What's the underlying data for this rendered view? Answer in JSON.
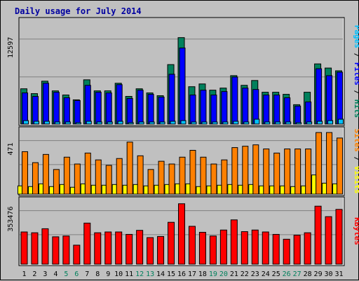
{
  "title": "Daily usage for July 2014",
  "colors": {
    "background": "#c0c0c0",
    "hits": "#00805c",
    "files": "#0000ff",
    "pages": "#00c0ff",
    "visits": "#ff8000",
    "sites": "#ffff00",
    "kbytes": "#ff0000",
    "title": "#0000a0",
    "weekend": "#00805c"
  },
  "chart_data": [
    {
      "type": "bar",
      "panel": "top",
      "ytick": "12597",
      "right_label": [
        {
          "text": "Pages",
          "color": "#00c0ff"
        },
        {
          "text": " / ",
          "color": "#000000"
        },
        {
          "text": "Files",
          "color": "#0000ff"
        },
        {
          "text": " / ",
          "color": "#000000"
        },
        {
          "text": "Hits",
          "color": "#00805c"
        }
      ],
      "ymax": 15000,
      "series": [
        {
          "name": "Hits",
          "color": "#00805c",
          "values": [
            5100,
            4400,
            6200,
            4800,
            4200,
            3500,
            6400,
            4800,
            4800,
            5900,
            4000,
            5100,
            4500,
            4100,
            8600,
            12500,
            5400,
            5800,
            4900,
            5200,
            7000,
            5600,
            6300,
            4600,
            4600,
            4300,
            2800,
            4600,
            8700,
            8100,
            7700
          ]
        },
        {
          "name": "Files",
          "color": "#0000ff",
          "values": [
            4500,
            4000,
            5900,
            4600,
            3800,
            3400,
            5600,
            4600,
            4500,
            5700,
            3700,
            4900,
            4300,
            3900,
            7200,
            11000,
            4200,
            4900,
            4200,
            4700,
            6800,
            5200,
            5000,
            4200,
            4200,
            3800,
            2600,
            3200,
            8000,
            7000,
            7500
          ]
        },
        {
          "name": "Pages",
          "color": "#00c0ff",
          "values": [
            500,
            400,
            400,
            300,
            300,
            200,
            400,
            300,
            300,
            400,
            200,
            300,
            300,
            300,
            400,
            500,
            300,
            300,
            300,
            300,
            400,
            300,
            700,
            300,
            300,
            300,
            200,
            300,
            400,
            500,
            700
          ]
        }
      ]
    },
    {
      "type": "bar",
      "panel": "middle",
      "ytick": "471",
      "right_label": [
        {
          "text": "Sites",
          "color": "#ff8000"
        },
        {
          "text": " / ",
          "color": "#000000"
        },
        {
          "text": "Visits",
          "color": "#ffff00"
        }
      ],
      "ymax": 471,
      "series": [
        {
          "name": "Visits",
          "color": "#ff8000",
          "values": [
            310,
            230,
            290,
            180,
            270,
            220,
            300,
            250,
            210,
            260,
            380,
            280,
            180,
            240,
            220,
            270,
            320,
            270,
            220,
            250,
            340,
            350,
            360,
            330,
            300,
            330,
            330,
            330,
            450,
            450,
            410
          ]
        },
        {
          "name": "Sites",
          "color": "#ffff00",
          "values": [
            60,
            55,
            75,
            55,
            70,
            50,
            75,
            65,
            65,
            70,
            65,
            70,
            60,
            65,
            70,
            75,
            75,
            55,
            60,
            65,
            70,
            65,
            70,
            60,
            60,
            60,
            55,
            60,
            140,
            80,
            75
          ]
        }
      ]
    },
    {
      "type": "bar",
      "panel": "bottom",
      "ytick": "353476",
      "right_label": [
        {
          "text": "KBytes",
          "color": "#ff0000"
        }
      ],
      "ymax": 400000,
      "series": [
        {
          "name": "KBytes",
          "color": "#ff0000",
          "values": [
            200000,
            195000,
            220000,
            170000,
            175000,
            118000,
            255000,
            195000,
            200000,
            200000,
            185000,
            210000,
            165000,
            172000,
            260000,
            375000,
            235000,
            198000,
            175000,
            212000,
            275000,
            202000,
            212000,
            200000,
            185000,
            155000,
            180000,
            195000,
            360000,
            295000,
            340000
          ]
        }
      ]
    }
  ],
  "xaxis": {
    "labels": [
      "1",
      "2",
      "3",
      "4",
      "5",
      "6",
      "7",
      "8",
      "9",
      "10",
      "11",
      "12",
      "13",
      "14",
      "15",
      "16",
      "17",
      "18",
      "19",
      "20",
      "21",
      "22",
      "23",
      "24",
      "25",
      "26",
      "27",
      "28",
      "29",
      "30",
      "31"
    ],
    "weekend_days": [
      "5",
      "6",
      "12",
      "13",
      "19",
      "20",
      "26",
      "27"
    ]
  }
}
